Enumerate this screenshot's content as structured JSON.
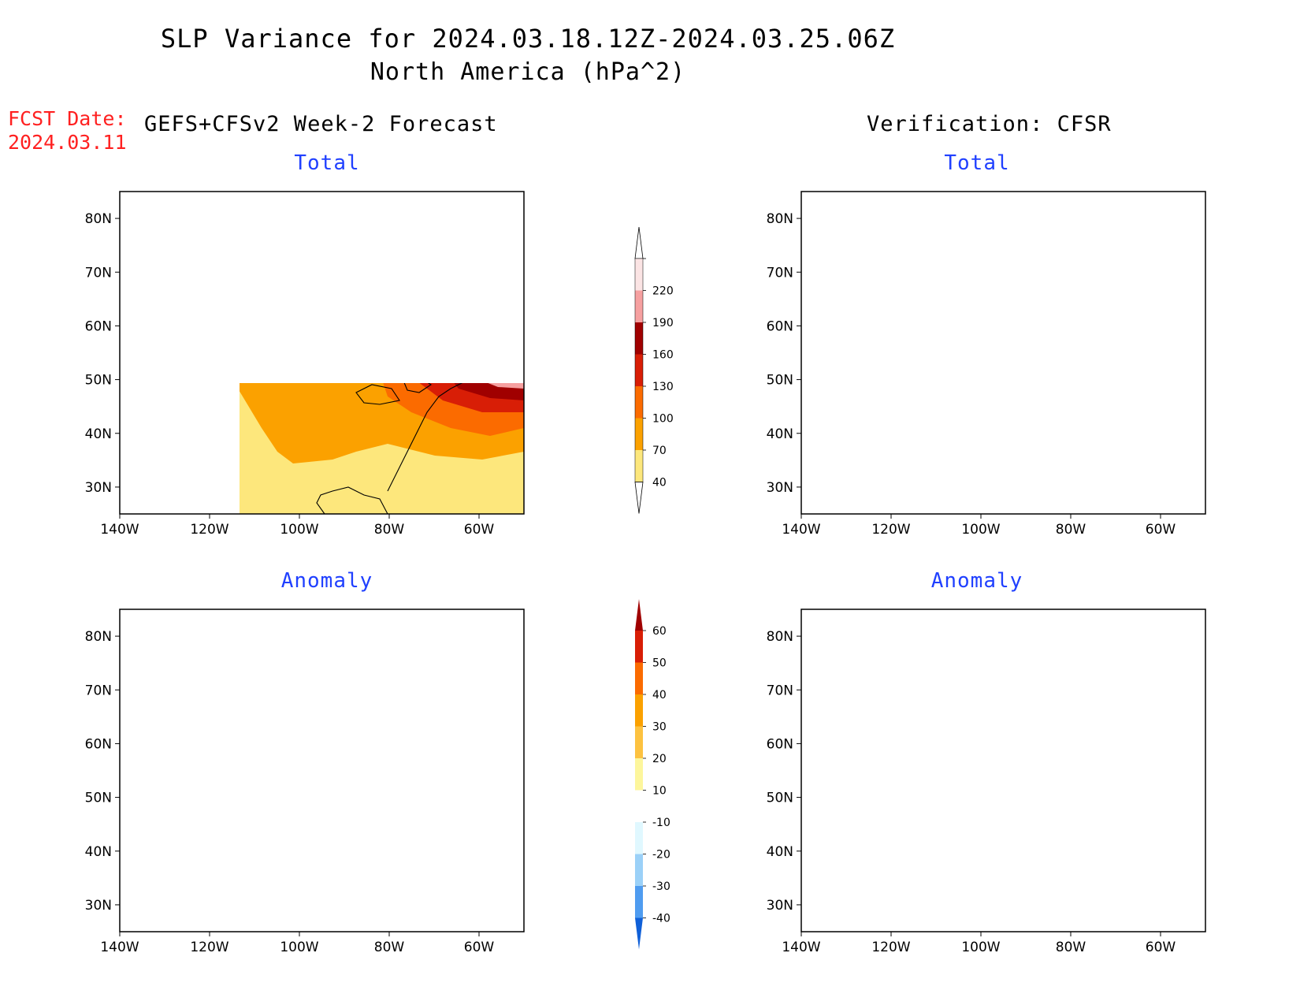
{
  "title": {
    "line1": "SLP Variance for 2024.03.18.12Z-2024.03.25.06Z",
    "line2": "North America (hPa^2)"
  },
  "forecast_date": {
    "label": "FCST Date:",
    "value": "2024.03.11"
  },
  "columns": {
    "left": "GEFS+CFSv2 Week-2 Forecast",
    "right": "Verification: CFSR"
  },
  "panels": [
    {
      "title": "Total"
    },
    {
      "title": "Total"
    },
    {
      "title": "Anomaly"
    },
    {
      "title": "Anomaly"
    }
  ],
  "axes": {
    "lat_labels": [
      "80N",
      "70N",
      "60N",
      "50N",
      "40N",
      "30N"
    ],
    "lon_labels": [
      "140W",
      "120W",
      "100W",
      "80W",
      "60W"
    ],
    "lat_values": [
      80,
      70,
      60,
      50,
      40,
      30
    ],
    "lon_values": [
      -140,
      -120,
      -100,
      -80,
      -60
    ],
    "lat_range": [
      25,
      85
    ],
    "lon_range": [
      -140,
      -50
    ]
  },
  "total_colorbar": {
    "labels": [
      "220",
      "190",
      "160",
      "130",
      "100",
      "70",
      "40"
    ],
    "colors_top_to_bottom": [
      "#fbe4e4",
      "#f6a0a0",
      "#a00000",
      "#d81e06",
      "#fb6b00",
      "#fba100",
      "#fde77c"
    ]
  },
  "anomaly_colorbar": {
    "labels": [
      "60",
      "50",
      "40",
      "30",
      "20",
      "10",
      "-10",
      "-20",
      "-30",
      "-40"
    ],
    "colors_top_to_bottom": [
      "#a00000",
      "#d81e06",
      "#fb6b00",
      "#fba100",
      "#fdc240",
      "#fdf69c",
      "#ffffff",
      "#e0f8ff",
      "#9bd1f8",
      "#4f9cf0",
      "#1060d8"
    ]
  }
}
